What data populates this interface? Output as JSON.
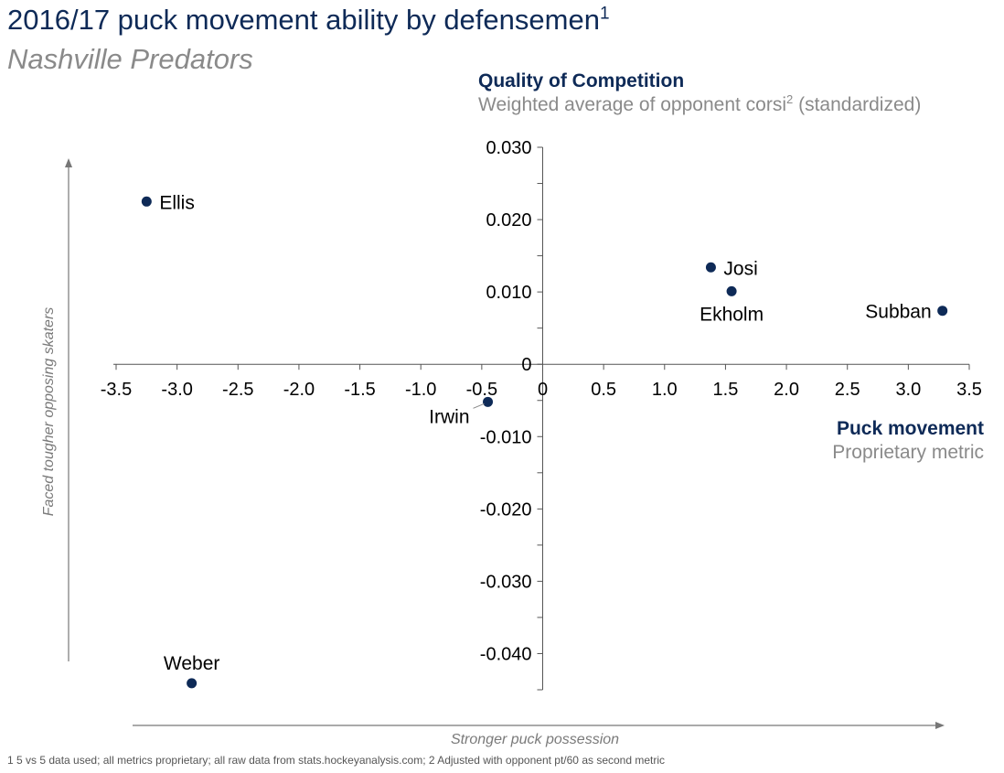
{
  "header": {
    "title": "2016/17 puck movement ability by defensemen",
    "title_sup": "1",
    "subtitle": "Nashville Predators"
  },
  "footnote": "1 5 vs 5 data used; all metrics proprietary; all raw data from stats.hockeyanalysis.com; 2 Adjusted with opponent pt/60 as second metric",
  "colors": {
    "point": "#0e2a57",
    "axis": "#555555",
    "title": "#0e2a57",
    "muted": "#8a8a8a"
  },
  "chart_data": {
    "type": "scatter",
    "x": [
      -3.25,
      -0.45,
      1.38,
      1.55,
      3.28,
      -2.88
    ],
    "y": [
      0.0225,
      -0.0052,
      0.0134,
      0.0101,
      0.0074,
      -0.0441
    ],
    "labels": [
      "Ellis",
      "Irwin",
      "Josi",
      "Ekholm",
      "Subban",
      "Weber"
    ],
    "xlim": [
      -3.5,
      3.5
    ],
    "ylim": [
      -0.045,
      0.03
    ],
    "xticks": [
      -3.5,
      -3.0,
      -2.5,
      -2.0,
      -1.5,
      -1.0,
      -0.5,
      0,
      0.5,
      1.0,
      1.5,
      2.0,
      2.5,
      3.0,
      3.5
    ],
    "xtick_labels": [
      "-3.5",
      "-3.0",
      "-2.5",
      "-2.0",
      "-1.5",
      "-1.0",
      "-0.5",
      "0",
      "0.5",
      "1.0",
      "1.5",
      "2.0",
      "2.5",
      "3.0",
      "3.5"
    ],
    "yticks": [
      0.03,
      0.02,
      0.01,
      0,
      -0.01,
      -0.02,
      -0.03,
      -0.04
    ],
    "ytick_labels": [
      "0.030",
      "0.020",
      "0.010",
      "0",
      "-0.010",
      "-0.020",
      "-0.030",
      "-0.040"
    ],
    "ylabel": "Quality of Competition",
    "ylabel_sub": "Weighted average of opponent corsi",
    "ylabel_sup": "2",
    "ylabel_sub_tail": "(standardized)",
    "xlabel": "Puck movement",
    "xlabel_sub": "Proprietary metric",
    "y_guide": "Faced tougher opposing skaters",
    "x_guide": "Stronger puck possession",
    "grid": false,
    "legend": "none"
  }
}
